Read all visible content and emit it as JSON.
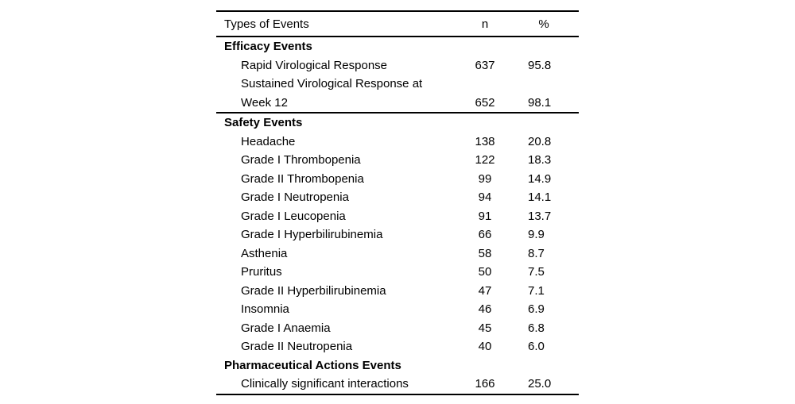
{
  "page": {
    "background": "#ffffff",
    "text_color": "#000000",
    "rule_color": "#000000"
  },
  "table": {
    "header": {
      "types": "Types of Events",
      "n": "n",
      "pct": "%"
    },
    "sections": [
      {
        "title": "Efficacy Events",
        "divider_after": true,
        "rows": [
          {
            "label": "Rapid Virological Response",
            "n": "637",
            "pct": "95.8"
          },
          {
            "label": "Sustained Virological Response at Week 12",
            "label_lines": [
              "Sustained Virological Response at",
              "Week 12"
            ],
            "n": "652",
            "pct": "98.1"
          }
        ]
      },
      {
        "title": "Safety Events",
        "divider_after": false,
        "rows": [
          {
            "label": "Headache",
            "n": "138",
            "pct": "20.8"
          },
          {
            "label": "Grade I Thrombopenia",
            "n": "122",
            "pct": "18.3"
          },
          {
            "label": "Grade II Thrombopenia",
            "n": "99",
            "pct": "14.9"
          },
          {
            "label": "Grade I Neutropenia",
            "n": "94",
            "pct": "14.1"
          },
          {
            "label": "Grade I Leucopenia",
            "n": "91",
            "pct": "13.7"
          },
          {
            "label": "Grade I Hyperbilirubinemia",
            "n": "66",
            "pct": "9.9"
          },
          {
            "label": "Asthenia",
            "n": "58",
            "pct": "8.7"
          },
          {
            "label": "Pruritus",
            "n": "50",
            "pct": "7.5"
          },
          {
            "label": "Grade II Hyperbilirubinemia",
            "n": "47",
            "pct": "7.1"
          },
          {
            "label": "Insomnia",
            "n": "46",
            "pct": "6.9"
          },
          {
            "label": "Grade I Anaemia",
            "n": "45",
            "pct": "6.8"
          },
          {
            "label": "Grade II Neutropenia",
            "n": "40",
            "pct": "6.0"
          }
        ]
      },
      {
        "title": "Pharmaceutical Actions Events",
        "divider_after": false,
        "rows": [
          {
            "label": "Clinically significant interactions",
            "n": "166",
            "pct": "25.0"
          }
        ]
      }
    ]
  }
}
